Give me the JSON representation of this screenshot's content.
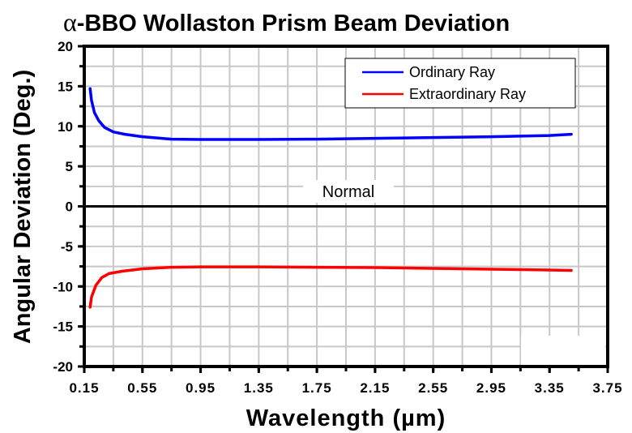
{
  "chart_data": {
    "type": "line",
    "title_prefix": "α",
    "title": "-BBO Wollaston Prism Beam Deviation",
    "xlabel": "Wavelength (µm)",
    "ylabel": "Angular Deviation (Deg.)",
    "xlim": [
      0.15,
      3.75
    ],
    "ylim": [
      -20,
      20
    ],
    "xticks": [
      0.15,
      0.55,
      0.95,
      1.35,
      1.75,
      2.15,
      2.55,
      2.95,
      3.35,
      3.75
    ],
    "xtick_labels": [
      "0.15",
      "0.55",
      "0.95",
      "1.35",
      "1.75",
      "2.15",
      "2.55",
      "2.95",
      "3.35",
      "3.75"
    ],
    "yticks": [
      -20,
      -15,
      -10,
      -5,
      0,
      5,
      10,
      15,
      20
    ],
    "ytick_labels": [
      "-20",
      "-15",
      "-10",
      "-5",
      "0",
      "5",
      "10",
      "15",
      "20"
    ],
    "minor_x_step": 0.2,
    "minor_y_step": 2.5,
    "grid": true,
    "legend_position": "top-right",
    "annotation": "Normal",
    "series": [
      {
        "name": "Ordinary Ray",
        "color": "#0000ff",
        "x": [
          0.19,
          0.2,
          0.22,
          0.25,
          0.29,
          0.35,
          0.43,
          0.55,
          0.75,
          0.95,
          1.35,
          1.75,
          2.15,
          2.55,
          2.95,
          3.35,
          3.5
        ],
        "y": [
          14.7,
          13.2,
          11.7,
          10.7,
          9.85,
          9.3,
          9.0,
          8.7,
          8.4,
          8.35,
          8.35,
          8.4,
          8.5,
          8.6,
          8.7,
          8.85,
          9.0
        ]
      },
      {
        "name": "Extraordinary Ray",
        "color": "#ff0000",
        "x": [
          0.19,
          0.2,
          0.23,
          0.27,
          0.32,
          0.41,
          0.55,
          0.75,
          0.95,
          1.35,
          1.75,
          2.15,
          2.55,
          2.95,
          3.35,
          3.5
        ],
        "y": [
          -12.6,
          -11.3,
          -9.85,
          -8.9,
          -8.4,
          -8.1,
          -7.8,
          -7.6,
          -7.55,
          -7.55,
          -7.6,
          -7.65,
          -7.75,
          -7.85,
          -7.95,
          -8.0
        ]
      }
    ]
  }
}
